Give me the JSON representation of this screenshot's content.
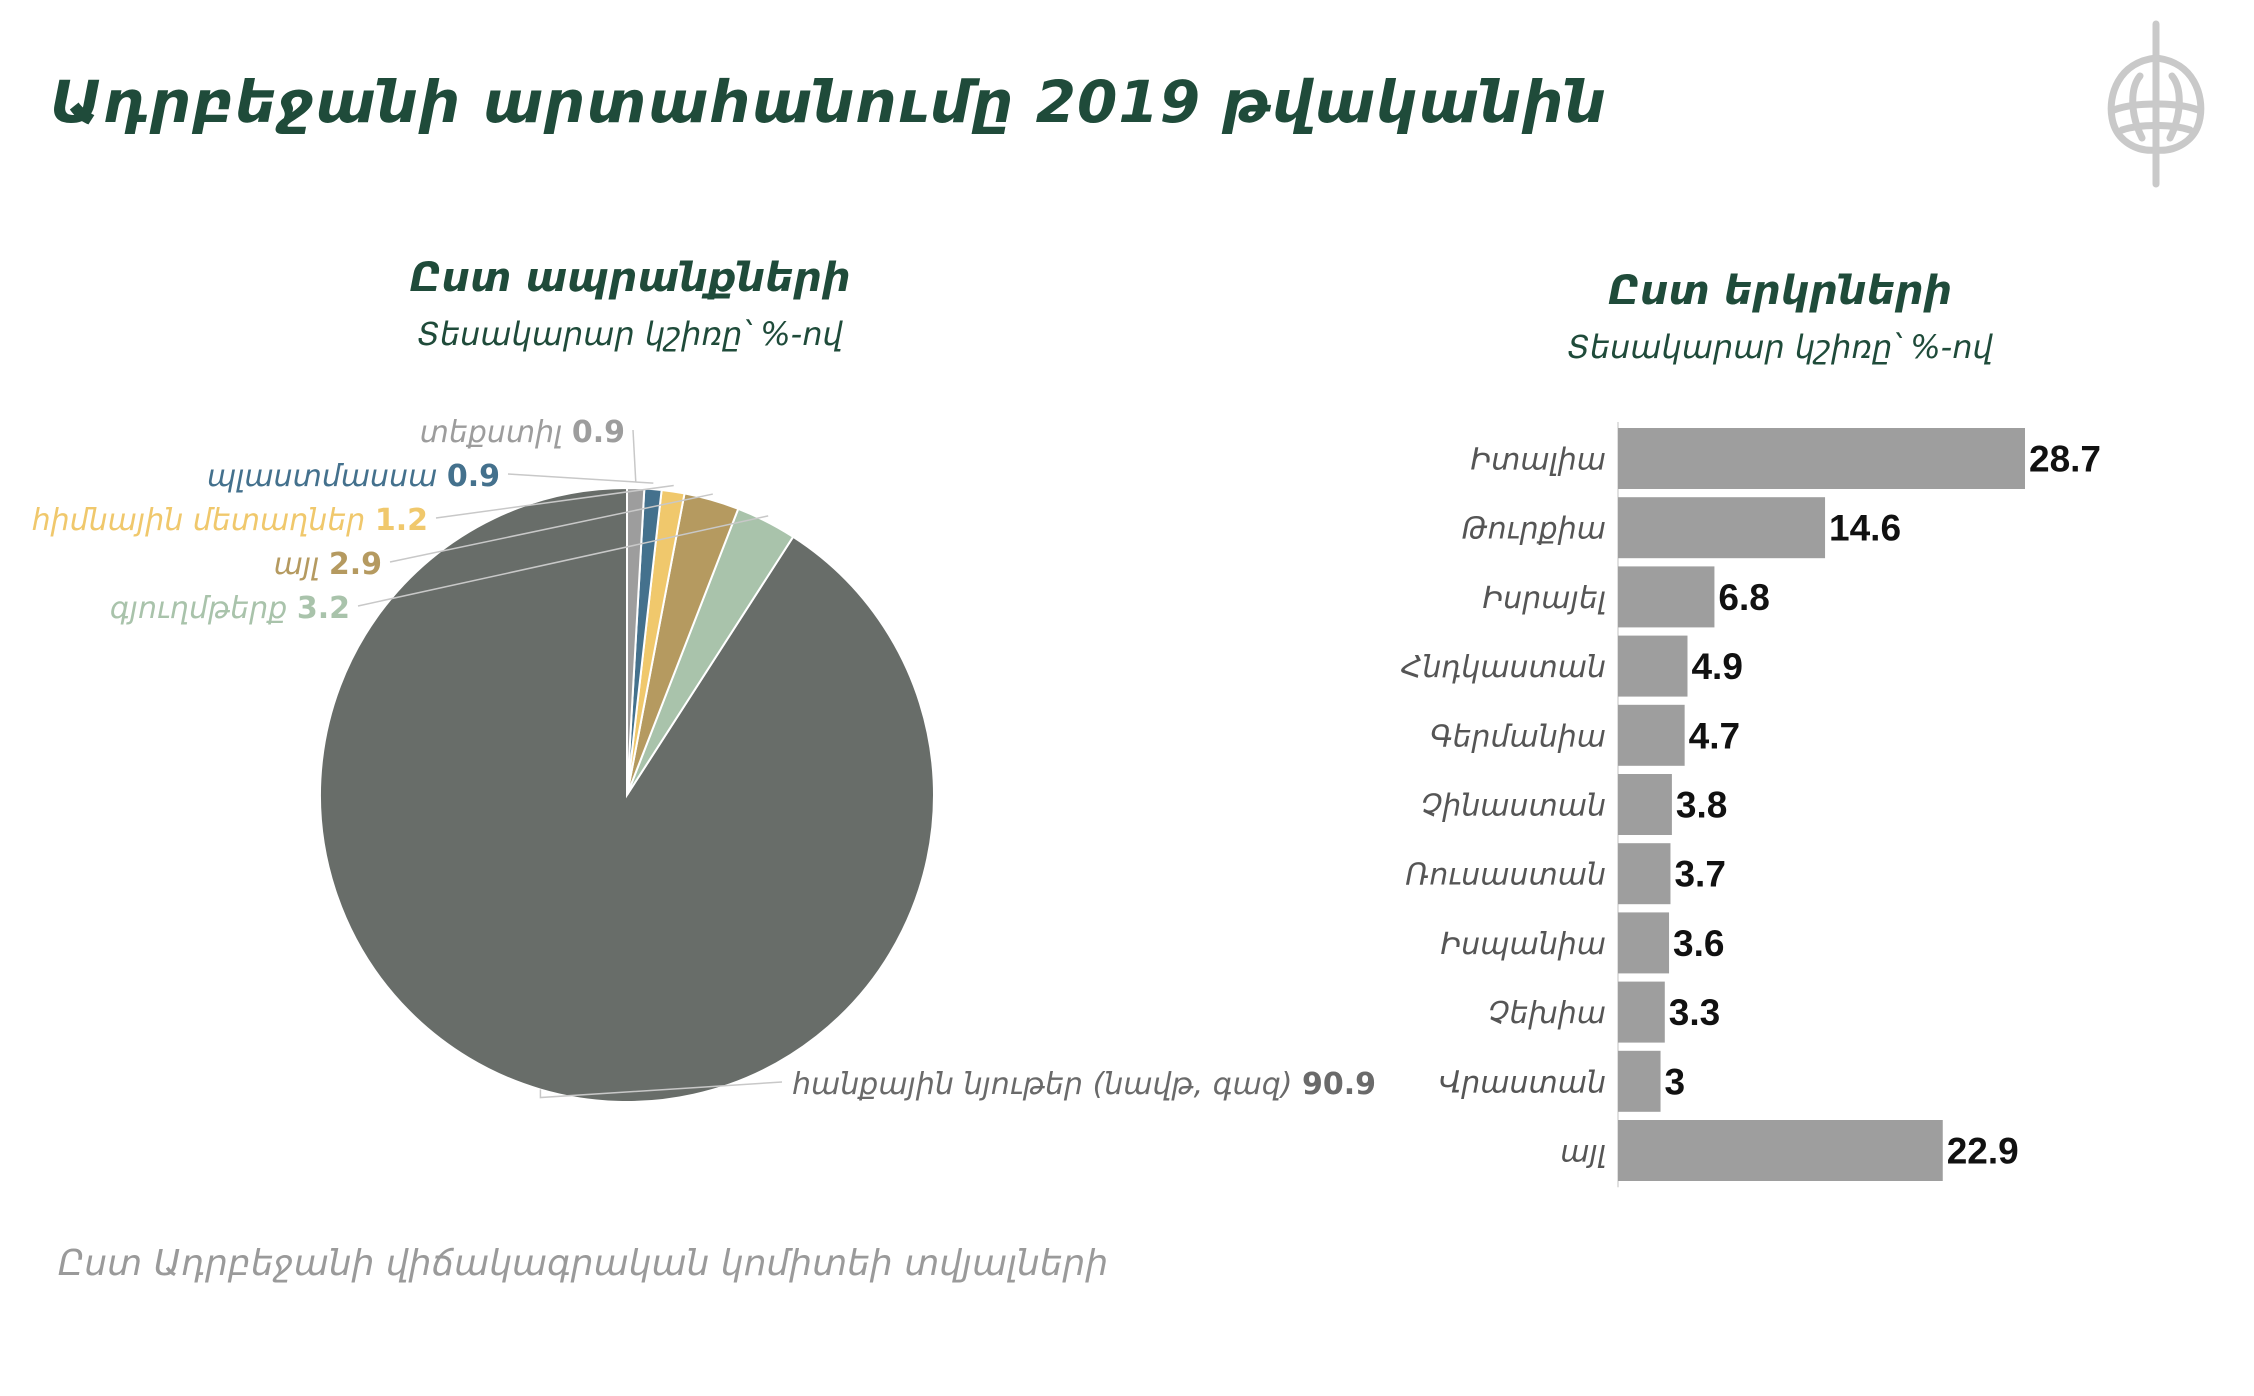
{
  "title": "Ադրբեջանի արտահանումը 2019 թվականին",
  "source": "Ըստ Ադրբեջանի վիճակագրական կոմիտեի տվյալների",
  "colors": {
    "title_green": "#1f4b3a",
    "bar_gray": "#9e9e9e",
    "label_gray": "#777777"
  },
  "chart_data": [
    {
      "type": "pie",
      "title": "Ըստ ապրանքների",
      "subtitle": "Տեսակարար կշիռը՝ %-ով",
      "slices": [
        {
          "label": "հանքային նյութեր (նավթ, գազ)",
          "value": 90.9,
          "color": "#686d69",
          "label_color": "#6a6a6a"
        },
        {
          "label": "գյուղմթերք",
          "value": 3.2,
          "color": "#a9c3ab",
          "label_color": "#a9c3ab"
        },
        {
          "label": "այլ",
          "value": 2.9,
          "color": "#b59a60",
          "label_color": "#b59a60"
        },
        {
          "label": "հիմնային մետաղներ",
          "value": 1.2,
          "color": "#f0c86c",
          "label_color": "#f0c86c"
        },
        {
          "label": "պլաստմասսա",
          "value": 0.9,
          "color": "#44718d",
          "label_color": "#44718d"
        },
        {
          "label": "տեքստիլ",
          "value": 0.9,
          "color": "#9d9d9d",
          "label_color": "#9d9d9d"
        }
      ]
    },
    {
      "type": "bar",
      "orientation": "horizontal",
      "title": "Ըստ երկրների",
      "subtitle": "Տեսակարար կշիռը՝ %-ով",
      "categories": [
        "Իտալիա",
        "Թուրքիա",
        "Իսրայել",
        "Հնդկաստան",
        "Գերմանիա",
        "Չինաստան",
        "Ռուսաստան",
        "Իսպանիա",
        "Չեխիա",
        "Վրաստան",
        "այլ"
      ],
      "values": [
        28.7,
        14.6,
        6.8,
        4.9,
        4.7,
        3.8,
        3.7,
        3.6,
        3.3,
        3,
        22.9
      ],
      "value_labels": [
        "28.7",
        "14.6",
        "6.8",
        "4.9",
        "4.7",
        "3.8",
        "3.7",
        "3.6",
        "3.3",
        "3",
        "22.9"
      ],
      "xlim": [
        0,
        28.7
      ]
    }
  ]
}
